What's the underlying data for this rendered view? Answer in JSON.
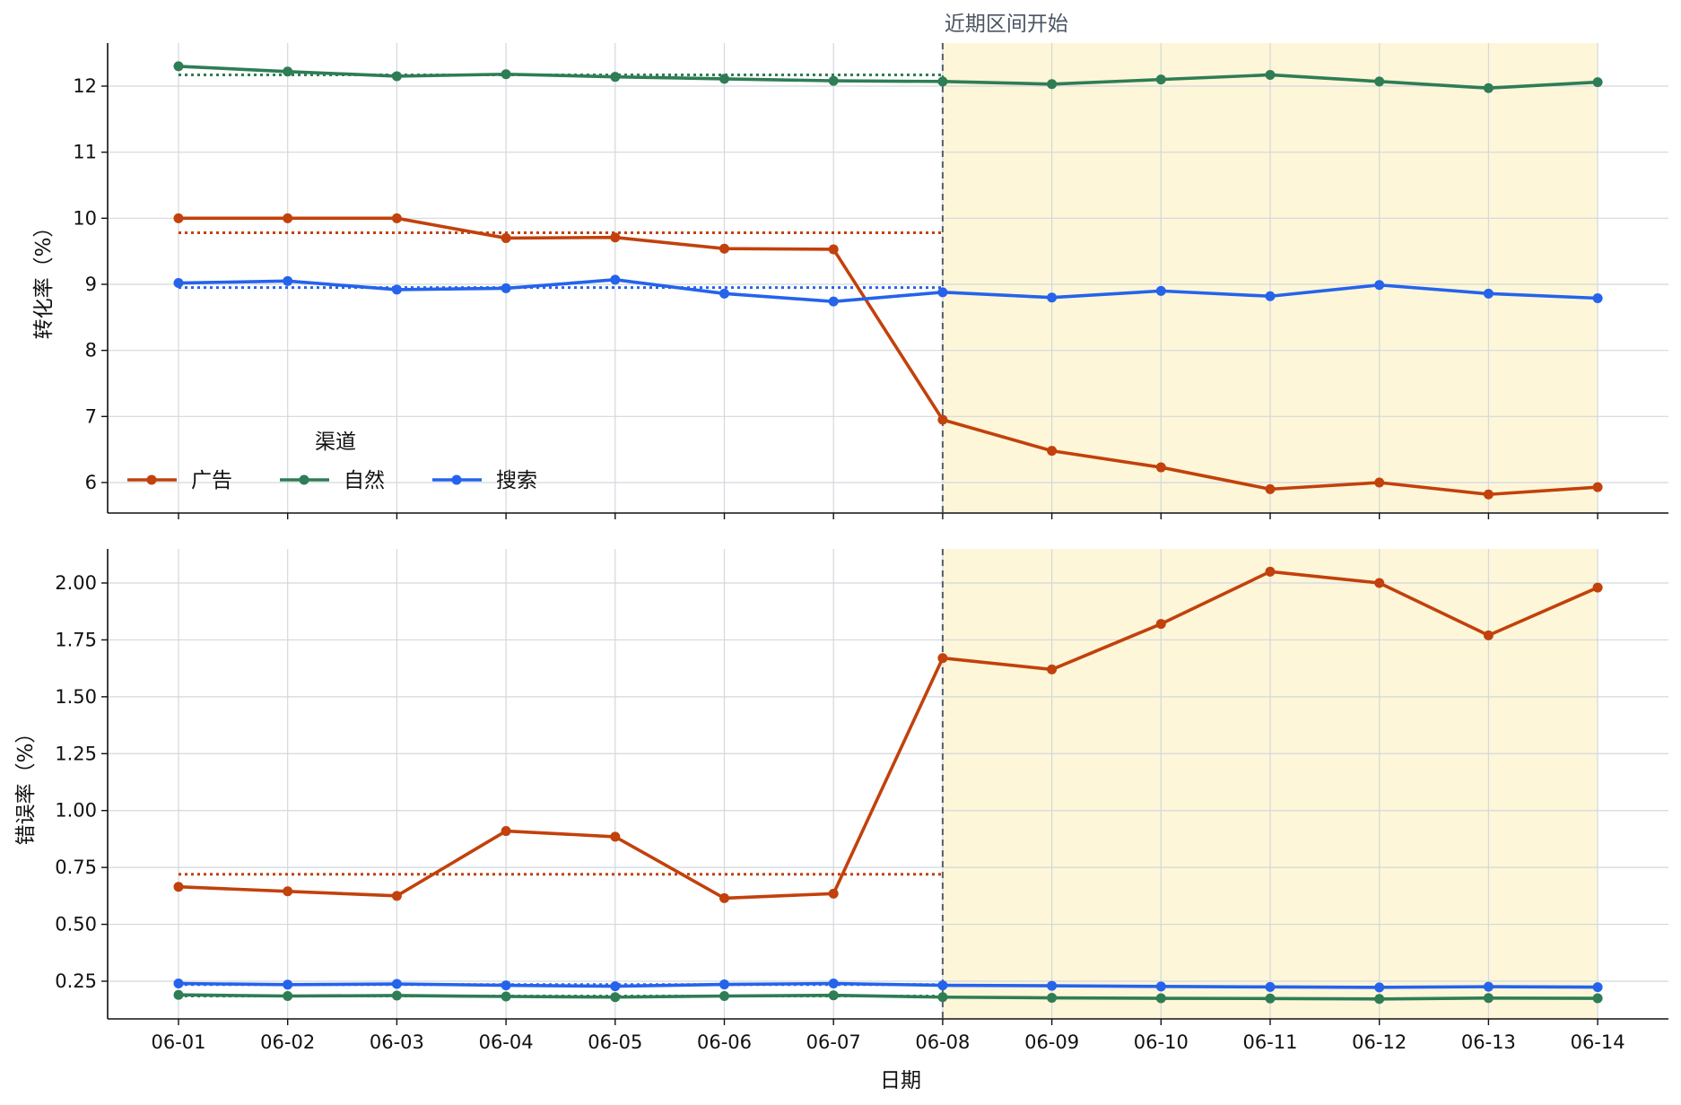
{
  "chart_data": [
    {
      "type": "line",
      "title": "",
      "xlabel": "",
      "ylabel": "转化率（%）",
      "ylim": [
        5.5,
        12.6
      ],
      "yticks": [
        6,
        7,
        8,
        9,
        10,
        11,
        12
      ],
      "ytick_labels": [
        "6",
        "7",
        "8",
        "9",
        "10",
        "11",
        "12"
      ],
      "grid": true,
      "x": [
        "06-01",
        "06-02",
        "06-03",
        "06-04",
        "06-05",
        "06-06",
        "06-07",
        "06-08",
        "06-09",
        "06-10",
        "06-11",
        "06-12",
        "06-13",
        "06-14"
      ],
      "series": [
        {
          "name": "广告",
          "color": "#c2410c",
          "values": [
            10.0,
            10.0,
            10.0,
            9.7,
            9.71,
            9.54,
            9.53,
            6.95,
            6.48,
            6.23,
            5.9,
            6.0,
            5.82,
            5.93
          ]
        },
        {
          "name": "自然",
          "color": "#2e7d55",
          "values": [
            12.3,
            12.22,
            12.15,
            12.18,
            12.14,
            12.11,
            12.08,
            12.07,
            12.03,
            12.1,
            12.17,
            12.07,
            11.97,
            12.06
          ]
        },
        {
          "name": "搜索",
          "color": "#2563eb",
          "values": [
            9.02,
            9.05,
            8.92,
            8.94,
            9.07,
            8.86,
            8.74,
            8.88,
            8.8,
            8.9,
            8.82,
            8.99,
            8.86,
            8.79
          ]
        }
      ],
      "baselines": [
        {
          "series": "广告",
          "value": 9.78,
          "x_range": [
            "06-01",
            "06-08"
          ],
          "style": "dotted"
        },
        {
          "series": "自然",
          "value": 12.17,
          "x_range": [
            "06-01",
            "06-08"
          ],
          "style": "dotted"
        },
        {
          "series": "搜索",
          "value": 8.95,
          "x_range": [
            "06-01",
            "06-08"
          ],
          "style": "dotted"
        }
      ],
      "legend": {
        "title": "渠道",
        "placement": "lower-left",
        "entries": [
          "广告",
          "自然",
          "搜索"
        ]
      },
      "annotations": [
        {
          "text": "近期区间开始",
          "x": "06-08"
        }
      ],
      "highlight_region": {
        "x_range": [
          "06-08",
          "06-14"
        ],
        "color": "#fdf6d8"
      },
      "vline": {
        "x": "06-08",
        "style": "dashed",
        "color": "#555f6d"
      }
    },
    {
      "type": "line",
      "title": "",
      "xlabel": "日期",
      "ylabel": "错误率（%）",
      "ylim": [
        0.07,
        2.15
      ],
      "yticks": [
        0.25,
        0.5,
        0.75,
        1.0,
        1.25,
        1.5,
        1.75,
        2.0
      ],
      "ytick_labels": [
        "0.25",
        "0.50",
        "0.75",
        "1.00",
        "1.25",
        "1.50",
        "1.75",
        "2.00"
      ],
      "grid": true,
      "x": [
        "06-01",
        "06-02",
        "06-03",
        "06-04",
        "06-05",
        "06-06",
        "06-07",
        "06-08",
        "06-09",
        "06-10",
        "06-11",
        "06-12",
        "06-13",
        "06-14"
      ],
      "series": [
        {
          "name": "广告",
          "color": "#c2410c",
          "values": [
            0.665,
            0.645,
            0.625,
            0.91,
            0.885,
            0.615,
            0.635,
            1.67,
            1.62,
            1.82,
            2.05,
            2.0,
            1.77,
            1.98
          ]
        },
        {
          "name": "自然",
          "color": "#2e7d55",
          "values": [
            0.19,
            0.185,
            0.187,
            0.183,
            0.18,
            0.185,
            0.188,
            0.18,
            0.177,
            0.175,
            0.174,
            0.172,
            0.176,
            0.175
          ]
        },
        {
          "name": "搜索",
          "color": "#2563eb",
          "values": [
            0.24,
            0.235,
            0.238,
            0.232,
            0.228,
            0.236,
            0.24,
            0.232,
            0.23,
            0.227,
            0.225,
            0.223,
            0.226,
            0.224
          ]
        }
      ],
      "baselines": [
        {
          "series": "广告",
          "value": 0.72,
          "x_range": [
            "06-01",
            "06-08"
          ],
          "style": "dotted"
        },
        {
          "series": "自然",
          "value": 0.185,
          "x_range": [
            "06-01",
            "06-08"
          ],
          "style": "dotted"
        },
        {
          "series": "搜索",
          "value": 0.235,
          "x_range": [
            "06-01",
            "06-08"
          ],
          "style": "dotted"
        }
      ],
      "highlight_region": {
        "x_range": [
          "06-08",
          "06-14"
        ],
        "color": "#fdf6d8"
      },
      "vline": {
        "x": "06-08",
        "style": "dashed",
        "color": "#555f6d"
      }
    }
  ]
}
